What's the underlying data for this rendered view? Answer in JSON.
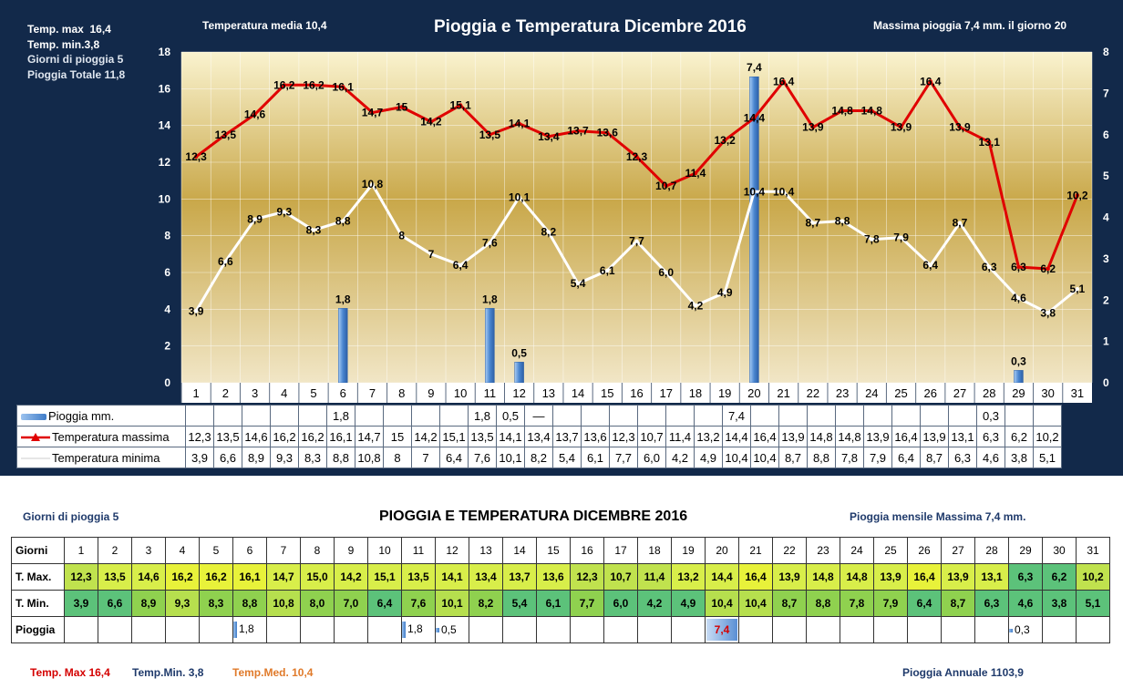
{
  "header": {
    "title": "Pioggia e Temperatura Dicembre 2016",
    "temp_media": "Temperatura media  10,4",
    "massima_pioggia": "Massima pioggia 7,4   mm. il giorno  20",
    "stats": [
      {
        "label": "Temp. max",
        "value": "16,4"
      },
      {
        "label": "Temp.  min.3,8",
        "value": ""
      },
      {
        "label": "Giorni  di pioggia",
        "value": "5"
      },
      {
        "label": "Pioggia Totale",
        "value": "11,8"
      }
    ]
  },
  "colors": {
    "tmax": "#e00000",
    "tmin": "#ffffff",
    "rain": "#4a86d0",
    "panel": "#12294a",
    "green_high": "#8fd14f",
    "yellow": "#e8f23a"
  },
  "chart_data": {
    "type": "line",
    "title": "Pioggia e Temperatura Dicembre 2016",
    "categories": [
      "1",
      "2",
      "3",
      "4",
      "5",
      "6",
      "7",
      "8",
      "9",
      "10",
      "11",
      "12",
      "13",
      "14",
      "15",
      "16",
      "17",
      "18",
      "19",
      "20",
      "21",
      "22",
      "23",
      "24",
      "25",
      "26",
      "27",
      "28",
      "29",
      "30",
      "31"
    ],
    "y_left": {
      "min": 0,
      "max": 18,
      "ticks": [
        0,
        2,
        4,
        6,
        8,
        10,
        12,
        14,
        16,
        18
      ]
    },
    "y_right": {
      "min": 0,
      "max": 8,
      "ticks": [
        0,
        1,
        2,
        3,
        4,
        5,
        6,
        7,
        8
      ]
    },
    "grid": true,
    "legend_position": "table-below",
    "series": [
      {
        "name": "Pioggia mm.",
        "kind": "bar",
        "axis": "right",
        "values": [
          null,
          null,
          null,
          null,
          null,
          1.8,
          null,
          null,
          null,
          null,
          1.8,
          0.5,
          null,
          null,
          null,
          null,
          null,
          null,
          null,
          7.4,
          null,
          null,
          null,
          null,
          null,
          null,
          null,
          null,
          0.3,
          null,
          null
        ],
        "labels": [
          "",
          "",
          "",
          "",
          "",
          "1,8",
          "",
          "",
          "",
          "",
          "1,8",
          "0,5",
          "—",
          "",
          "",
          "",
          "",
          "",
          "",
          "7,4",
          "",
          "",
          "",
          "",
          "",
          "",
          "",
          "",
          "0,3",
          "",
          ""
        ]
      },
      {
        "name": "Temperatura massima",
        "kind": "line",
        "axis": "left",
        "values": [
          12.3,
          13.5,
          14.6,
          16.2,
          16.2,
          16.1,
          14.7,
          15,
          14.2,
          15.1,
          13.5,
          14.1,
          13.4,
          13.7,
          13.6,
          12.3,
          10.7,
          11.4,
          13.2,
          14.4,
          16.4,
          13.9,
          14.8,
          14.8,
          13.9,
          16.4,
          13.9,
          13.1,
          6.3,
          6.2,
          10.2
        ],
        "labels": [
          "12,3",
          "13,5",
          "14,6",
          "16,2",
          "16,2",
          "16,1",
          "14,7",
          "15",
          "14,2",
          "15,1",
          "13,5",
          "14,1",
          "13,4",
          "13,7",
          "13,6",
          "12,3",
          "10,7",
          "11,4",
          "13,2",
          "14,4",
          "16,4",
          "13,9",
          "14,8",
          "14,8",
          "13,9",
          "16,4",
          "13,9",
          "13,1",
          "6,3",
          "6,2",
          "10,2"
        ]
      },
      {
        "name": "Temperatura minima",
        "kind": "line",
        "axis": "left",
        "values": [
          3.9,
          6.6,
          8.9,
          9.3,
          8.3,
          8.8,
          10.8,
          8,
          7,
          6.4,
          7.6,
          10.1,
          8.2,
          5.4,
          6.1,
          7.7,
          6.0,
          4.2,
          4.9,
          10.4,
          10.4,
          8.7,
          8.8,
          7.8,
          7.9,
          6.4,
          8.7,
          6.3,
          4.6,
          3.8,
          5.1
        ],
        "labels": [
          "3,9",
          "6,6",
          "8,9",
          "9,3",
          "8,3",
          "8,8",
          "10,8",
          "8",
          "7",
          "6,4",
          "7,6",
          "10,1",
          "8,2",
          "5,4",
          "6,1",
          "7,7",
          "6,0",
          "4,2",
          "4,9",
          "10,4",
          "10,4",
          "8,7",
          "8,8",
          "7,8",
          "7,9",
          "6,4",
          "8,7",
          "6,3",
          "4,6",
          "3,8",
          "5,1"
        ]
      }
    ]
  },
  "bottom": {
    "giorni_pioggia": "Giorni di pioggia  5",
    "title": "PIOGGIA E TEMPERATURA DICEMBRE 2016",
    "pioggia_mensile": "Pioggia mensile Massima  7,4     mm.",
    "row_labels": [
      "Giorni",
      "T. Max.",
      "T. Min.",
      "Pioggia"
    ],
    "days": [
      "1",
      "2",
      "3",
      "4",
      "5",
      "6",
      "7",
      "8",
      "9",
      "10",
      "11",
      "12",
      "13",
      "14",
      "15",
      "16",
      "17",
      "18",
      "19",
      "20",
      "21",
      "22",
      "23",
      "24",
      "25",
      "26",
      "27",
      "28",
      "29",
      "30",
      "31"
    ],
    "tmax": [
      "12,3",
      "13,5",
      "14,6",
      "16,2",
      "16,2",
      "16,1",
      "14,7",
      "15,0",
      "14,2",
      "15,1",
      "13,5",
      "14,1",
      "13,4",
      "13,7",
      "13,6",
      "12,3",
      "10,7",
      "11,4",
      "13,2",
      "14,4",
      "16,4",
      "13,9",
      "14,8",
      "14,8",
      "13,9",
      "16,4",
      "13,9",
      "13,1",
      "6,3",
      "6,2",
      "10,2"
    ],
    "tmin": [
      "3,9",
      "6,6",
      "8,9",
      "9,3",
      "8,3",
      "8,8",
      "10,8",
      "8,0",
      "7,0",
      "6,4",
      "7,6",
      "10,1",
      "8,2",
      "5,4",
      "6,1",
      "7,7",
      "6,0",
      "4,2",
      "4,9",
      "10,4",
      "10,4",
      "8,7",
      "8,8",
      "7,8",
      "7,9",
      "6,4",
      "8,7",
      "6,3",
      "4,6",
      "3,8",
      "5,1"
    ],
    "pioggia": [
      "",
      "",
      "",
      "",
      "",
      "1,8",
      "",
      "",
      "",
      "",
      "1,8",
      "0,5",
      "",
      "",
      "",
      "",
      "",
      "",
      "",
      "7,4",
      "",
      "",
      "",
      "",
      "",
      "",
      "",
      "",
      "0,3",
      "",
      ""
    ],
    "footer_tmax": "Temp. Max 16,4",
    "footer_tmin": "Temp.Min.  3,8",
    "footer_tmed": "Temp.Med. 10,4",
    "pioggia_annuale": "Pioggia Annuale  1103,9"
  }
}
